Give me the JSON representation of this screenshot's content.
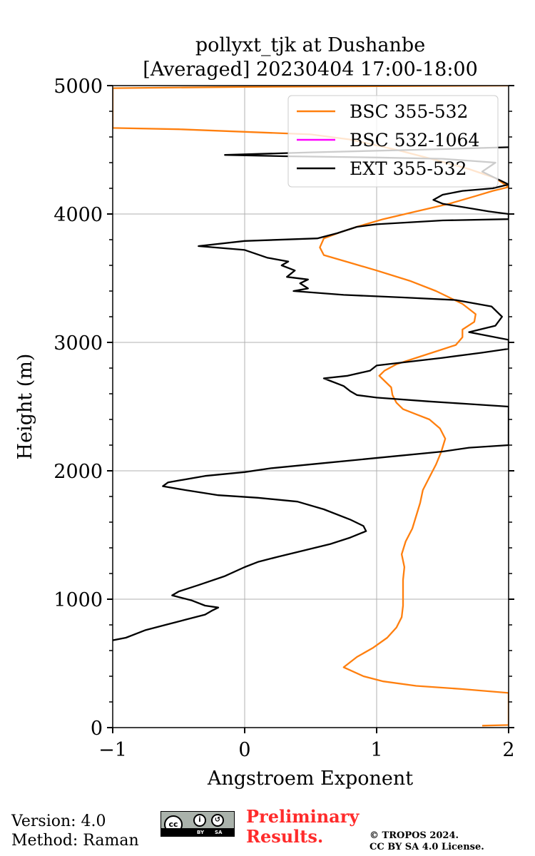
{
  "chart_data": {
    "type": "line",
    "title_line1": "pollyxt_tjk at Dushanbe",
    "title_line2": "[Averaged] 20230404 17:00-18:00",
    "xlabel": "Angstroem Exponent",
    "ylabel": "Height (m)",
    "xlim": [
      -1,
      2
    ],
    "ylim": [
      0,
      5000
    ],
    "xticks": [
      -1,
      0,
      1,
      2
    ],
    "xtick_labels": [
      "−1",
      "0",
      "1",
      "2"
    ],
    "yticks": [
      0,
      1000,
      2000,
      3000,
      4000,
      5000
    ],
    "ytick_labels": [
      "0",
      "1000",
      "2000",
      "3000",
      "4000",
      "5000"
    ],
    "grid": true,
    "legend_position": "top-right",
    "series": [
      {
        "name": "BSC 355-532",
        "color": "#ff7f0e",
        "points": [
          [
            1.8,
            15
          ],
          [
            2.0,
            20
          ],
          [
            2.0,
            270
          ],
          [
            1.65,
            300
          ],
          [
            1.3,
            325
          ],
          [
            1.05,
            360
          ],
          [
            0.9,
            400
          ],
          [
            0.75,
            470
          ],
          [
            0.85,
            550
          ],
          [
            0.97,
            620
          ],
          [
            1.08,
            700
          ],
          [
            1.15,
            780
          ],
          [
            1.19,
            860
          ],
          [
            1.2,
            950
          ],
          [
            1.2,
            1050
          ],
          [
            1.2,
            1150
          ],
          [
            1.21,
            1250
          ],
          [
            1.19,
            1350
          ],
          [
            1.22,
            1450
          ],
          [
            1.27,
            1550
          ],
          [
            1.3,
            1650
          ],
          [
            1.33,
            1750
          ],
          [
            1.35,
            1850
          ],
          [
            1.4,
            1950
          ],
          [
            1.45,
            2050
          ],
          [
            1.49,
            2150
          ],
          [
            1.52,
            2250
          ],
          [
            1.48,
            2330
          ],
          [
            1.4,
            2400
          ],
          [
            1.3,
            2440
          ],
          [
            1.2,
            2480
          ],
          [
            1.15,
            2530
          ],
          [
            1.12,
            2590
          ],
          [
            1.11,
            2650
          ],
          [
            1.06,
            2700
          ],
          [
            1.02,
            2740
          ],
          [
            1.06,
            2780
          ],
          [
            1.15,
            2830
          ],
          [
            1.3,
            2880
          ],
          [
            1.45,
            2930
          ],
          [
            1.6,
            2980
          ],
          [
            1.65,
            3040
          ],
          [
            1.65,
            3100
          ],
          [
            1.74,
            3160
          ],
          [
            1.75,
            3220
          ],
          [
            1.65,
            3300
          ],
          [
            1.45,
            3400
          ],
          [
            1.25,
            3480
          ],
          [
            1.0,
            3560
          ],
          [
            0.8,
            3620
          ],
          [
            0.6,
            3680
          ],
          [
            0.57,
            3740
          ],
          [
            0.6,
            3810
          ],
          [
            0.73,
            3860
          ],
          [
            0.85,
            3900
          ],
          [
            1.05,
            3960
          ],
          [
            1.3,
            4020
          ],
          [
            1.55,
            4080
          ],
          [
            1.75,
            4140
          ],
          [
            1.88,
            4180
          ],
          [
            2.0,
            4210
          ],
          [
            1.9,
            4280
          ],
          [
            1.7,
            4350
          ],
          [
            1.45,
            4420
          ],
          [
            1.15,
            4500
          ],
          [
            0.8,
            4580
          ],
          [
            0.5,
            4620
          ],
          [
            0.0,
            4640
          ],
          [
            -0.5,
            4660
          ],
          [
            -1.0,
            4670
          ],
          [
            -1.0,
            4980
          ],
          [
            0.0,
            4990
          ],
          [
            1.0,
            4995
          ],
          [
            2.0,
            5000
          ]
        ]
      },
      {
        "name": "BSC 532-1064",
        "color": "#ff00ff",
        "points": []
      },
      {
        "name": "EXT 355-532",
        "color": "#000000",
        "points": [
          [
            -1.0,
            680
          ],
          [
            -0.9,
            700
          ],
          [
            -0.75,
            760
          ],
          [
            -0.6,
            800
          ],
          [
            -0.45,
            840
          ],
          [
            -0.3,
            880
          ],
          [
            -0.25,
            910
          ],
          [
            -0.2,
            935
          ],
          [
            -0.3,
            950
          ],
          [
            -0.4,
            990
          ],
          [
            -0.55,
            1030
          ],
          [
            -0.5,
            1060
          ],
          [
            -0.35,
            1110
          ],
          [
            -0.15,
            1180
          ],
          [
            0.0,
            1250
          ],
          [
            0.1,
            1290
          ],
          [
            0.25,
            1330
          ],
          [
            0.45,
            1380
          ],
          [
            0.65,
            1430
          ],
          [
            0.8,
            1480
          ],
          [
            0.92,
            1530
          ],
          [
            0.9,
            1570
          ],
          [
            0.8,
            1620
          ],
          [
            0.6,
            1700
          ],
          [
            0.4,
            1760
          ],
          [
            0.1,
            1790
          ],
          [
            -0.2,
            1810
          ],
          [
            -0.45,
            1850
          ],
          [
            -0.62,
            1880
          ],
          [
            -0.58,
            1910
          ],
          [
            -0.3,
            1960
          ],
          [
            0.0,
            1990
          ],
          [
            0.2,
            2020
          ],
          [
            0.6,
            2060
          ],
          [
            1.1,
            2110
          ],
          [
            1.5,
            2150
          ],
          [
            1.7,
            2180
          ],
          [
            2.0,
            2200
          ],
          [
            2.0,
            2500
          ],
          [
            1.7,
            2520
          ],
          [
            1.4,
            2540
          ],
          [
            1.0,
            2570
          ],
          [
            0.85,
            2590
          ],
          [
            0.8,
            2620
          ],
          [
            0.75,
            2660
          ],
          [
            0.7,
            2680
          ],
          [
            0.65,
            2700
          ],
          [
            0.6,
            2720
          ],
          [
            0.78,
            2740
          ],
          [
            0.95,
            2780
          ],
          [
            1.0,
            2820
          ],
          [
            1.5,
            2880
          ],
          [
            1.8,
            2920
          ],
          [
            2.0,
            2950
          ],
          [
            2.0,
            3020
          ],
          [
            1.7,
            3080
          ],
          [
            1.9,
            3130
          ],
          [
            1.95,
            3200
          ],
          [
            1.87,
            3280
          ],
          [
            1.6,
            3330
          ],
          [
            1.2,
            3350
          ],
          [
            0.75,
            3370
          ],
          [
            0.37,
            3400
          ],
          [
            0.48,
            3420
          ],
          [
            0.42,
            3460
          ],
          [
            0.48,
            3490
          ],
          [
            0.32,
            3510
          ],
          [
            0.38,
            3560
          ],
          [
            0.28,
            3600
          ],
          [
            0.33,
            3630
          ],
          [
            0.17,
            3660
          ],
          [
            0.0,
            3720
          ],
          [
            -0.35,
            3750
          ],
          [
            0.0,
            3790
          ],
          [
            0.55,
            3810
          ],
          [
            0.7,
            3850
          ],
          [
            0.85,
            3900
          ],
          [
            1.0,
            3920
          ],
          [
            1.5,
            3950
          ],
          [
            2.0,
            3960
          ],
          [
            2.0,
            4000
          ],
          [
            1.85,
            4020
          ],
          [
            1.5,
            4080
          ],
          [
            1.43,
            4110
          ],
          [
            1.5,
            4150
          ],
          [
            1.65,
            4180
          ],
          [
            1.88,
            4200
          ],
          [
            2.0,
            4230
          ],
          [
            1.9,
            4280
          ],
          [
            1.8,
            4330
          ],
          [
            1.9,
            4400
          ],
          [
            1.5,
            4430
          ],
          [
            1.0,
            4440
          ],
          [
            0.3,
            4450
          ],
          [
            -0.15,
            4460
          ],
          [
            0.5,
            4480
          ],
          [
            1.3,
            4500
          ],
          [
            2.0,
            4520
          ]
        ]
      }
    ]
  },
  "footer": {
    "version": "Version: 4.0",
    "method": "Method: Raman",
    "license_badge": "CC BY SA",
    "preliminary_line1": "Preliminary",
    "preliminary_line2": "Results.",
    "copyright_line1": "© TROPOS 2024.",
    "copyright_line2": "CC BY SA 4.0 License."
  }
}
